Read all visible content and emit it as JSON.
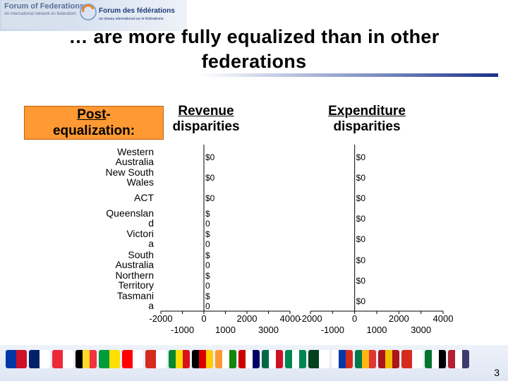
{
  "logo": {
    "left_title": "Forum of Federations",
    "left_subtitle": "An international network on federalism",
    "right_title": "Forum des fédérations",
    "right_subtitle": "un réseau international sur le fédéralisme"
  },
  "slide": {
    "title_line1": "… are more fully equalized than in other",
    "title_line2": "federations",
    "post_label_part1": "Post",
    "post_label_part1_suffix": "-",
    "post_label_part2": "equalization:",
    "page_number": "3"
  },
  "chart_data": [
    {
      "type": "bar",
      "title": "Revenue disparities",
      "categories": [
        "Western Australia",
        "New South Wales",
        "ACT",
        "Queensland",
        "Victoria",
        "South Australia",
        "Northern Territory",
        "Tasmania"
      ],
      "category_labels": [
        "Western\nAustralia",
        "New South\nWales",
        "ACT",
        "Queenslan\nd",
        "Victori\na",
        "South\nAustralia",
        "Northern\nTerritory",
        "Tasmani\na"
      ],
      "values": [
        0,
        0,
        0,
        0,
        0,
        0,
        0,
        0
      ],
      "data_labels": [
        "$0",
        "$0",
        "$0",
        "$\n0",
        "$\n0",
        "$\n0",
        "$\n0",
        "$\n0"
      ],
      "orientation": "horizontal",
      "xlim": [
        -2000,
        4000
      ],
      "xticks_upper": [
        "-2000",
        "0",
        "2000",
        "4000"
      ],
      "xticks_lower": [
        "-1000",
        "1000",
        "3000"
      ]
    },
    {
      "type": "bar",
      "title": "Expenditure disparities",
      "categories": [
        "Western Australia",
        "New South Wales",
        "ACT",
        "Queensland",
        "Victoria",
        "South Australia",
        "Northern Territory",
        "Tasmania"
      ],
      "values": [
        0,
        0,
        0,
        0,
        0,
        0,
        0,
        0
      ],
      "data_labels": [
        "$0",
        "$0",
        "$0",
        "$0",
        "$0",
        "$0",
        "$0",
        "$0"
      ],
      "orientation": "horizontal",
      "xlim": [
        -2000,
        4000
      ],
      "xticks_upper": [
        "-2000",
        "0",
        "2000",
        "4000"
      ],
      "xticks_lower": [
        "-1000",
        "1000",
        "3000"
      ]
    }
  ],
  "colors": {
    "post_box": "#ff9933",
    "title_rule": "#1b2f8a"
  },
  "flags": [
    "philippines",
    "australia",
    "austria",
    "belgium",
    "brazil",
    "canada",
    "switzerland",
    "ethiopia",
    "germany",
    "india",
    "malaysia",
    "mexico",
    "nigeria",
    "pakistan",
    "russia",
    "south-africa",
    "spain",
    "switzerland",
    "uae",
    "usa"
  ]
}
